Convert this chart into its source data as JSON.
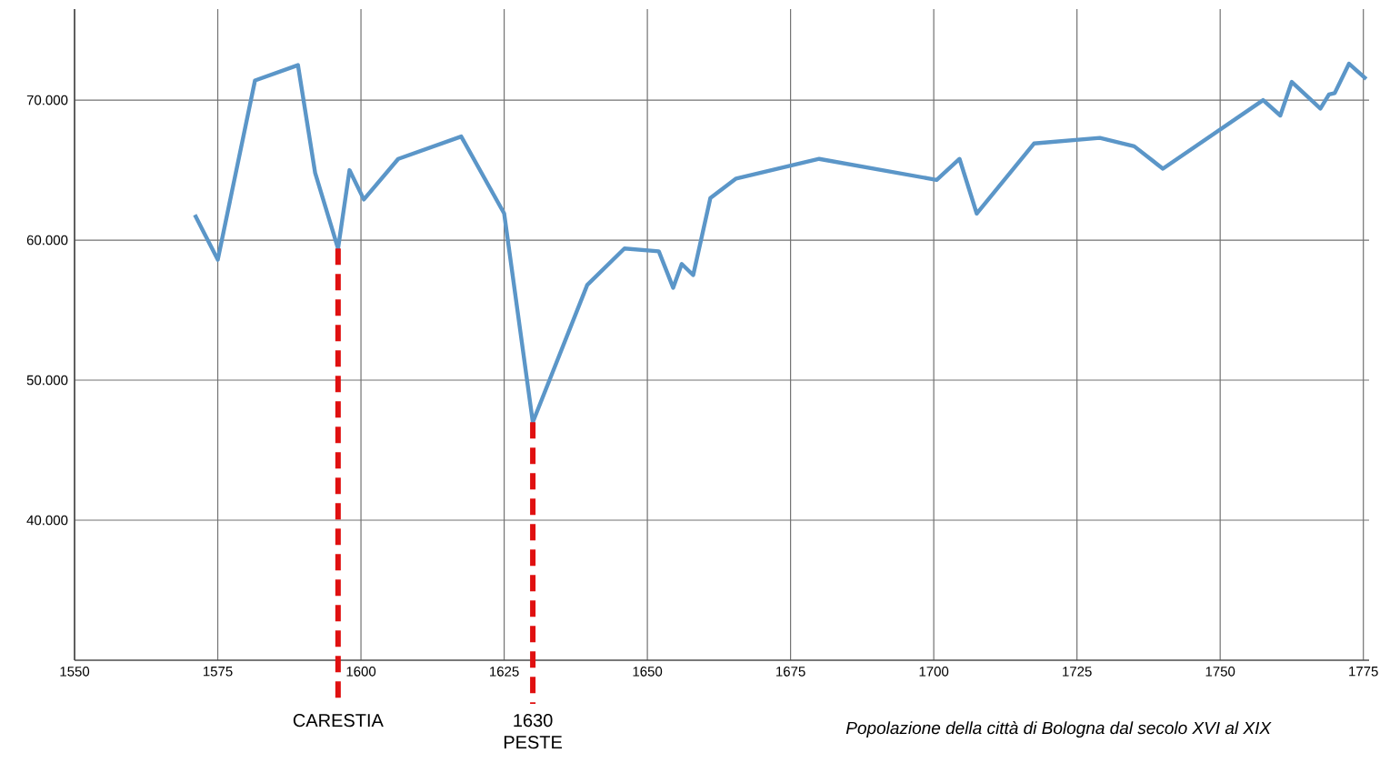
{
  "chart_data": {
    "type": "line",
    "x": [
      1571,
      1575,
      1581.5,
      1589,
      1592,
      1596,
      1598,
      1600.5,
      1606.5,
      1617.5,
      1625,
      1630,
      1639.5,
      1646,
      1652,
      1654.5,
      1656,
      1658,
      1661,
      1665.5,
      1680,
      1700.5,
      1704.5,
      1707.5,
      1717.5,
      1729,
      1735,
      1740,
      1757.5,
      1760.5,
      1762.5,
      1767.5,
      1769,
      1770,
      1772.5,
      1775.5
    ],
    "series": [
      {
        "color": "#5b96c8",
        "values": [
          61800,
          58600,
          71400,
          72500,
          64800,
          59400,
          65000,
          62900,
          65800,
          67400,
          61900,
          47000,
          56800,
          59400,
          59200,
          56600,
          58300,
          57500,
          63000,
          64400,
          65800,
          64300,
          65800,
          61900,
          66900,
          67300,
          66700,
          65100,
          70000,
          68900,
          71300,
          69400,
          70400,
          70500,
          72600,
          71500
        ]
      }
    ],
    "xlim": [
      1550,
      1776
    ],
    "ylim": [
      30000,
      76500
    ],
    "xticks": [
      1550,
      1575,
      1600,
      1625,
      1650,
      1675,
      1700,
      1725,
      1750,
      1775
    ],
    "yticks": [
      {
        "value": 40000,
        "label": "40.000"
      },
      {
        "value": 50000,
        "label": "50.000"
      },
      {
        "value": 60000,
        "label": "60.000"
      },
      {
        "value": 70000,
        "label": "70.000"
      }
    ],
    "grid": true,
    "marker": "none",
    "ref_lines": [
      {
        "axis": "x",
        "value": 1596,
        "label": "CARESTIA",
        "color": "#e01010",
        "line_style": "dashed"
      },
      {
        "axis": "x",
        "value": 1630,
        "label": "1630 PESTE",
        "color": "#e01010",
        "line_style": "dashed"
      }
    ],
    "annotations": [
      "Popolazione della città di Bologna dal secolo XVI al XIX"
    ]
  }
}
